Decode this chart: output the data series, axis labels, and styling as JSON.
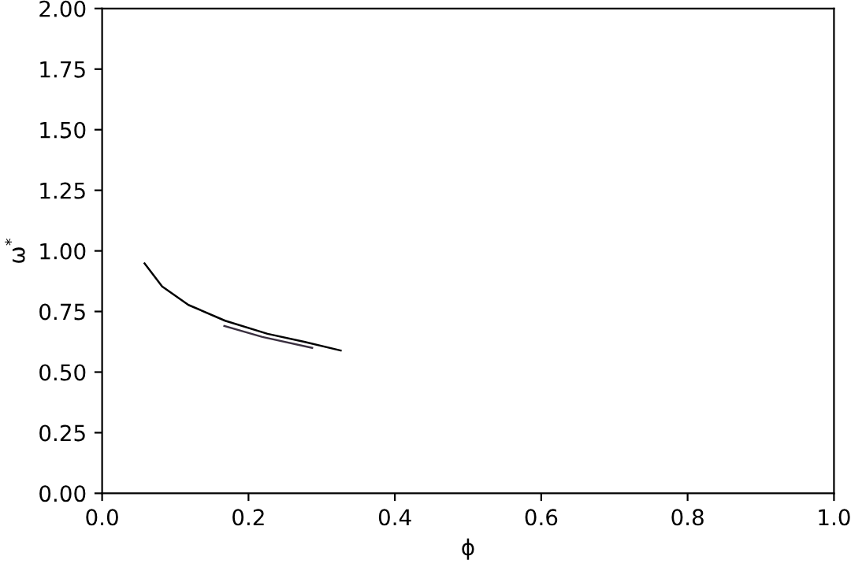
{
  "chart_data": {
    "type": "line",
    "xlabel": "ϕ",
    "ylabel": "ω$^{*}$",
    "xlim": [
      0,
      1
    ],
    "ylim": [
      0,
      2
    ],
    "xticks": [
      {
        "value": 0,
        "label": "0.0"
      },
      {
        "value": 0.2,
        "label": "0.2"
      },
      {
        "value": 0.4,
        "label": "0.4"
      },
      {
        "value": 0.6,
        "label": "0.6"
      },
      {
        "value": 0.8,
        "label": "0.8"
      },
      {
        "value": 1,
        "label": "1.0"
      }
    ],
    "yticks": [
      {
        "value": 0,
        "label": "0.00"
      },
      {
        "value": 0.25,
        "label": "0.25"
      },
      {
        "value": 0.5,
        "label": "0.50"
      },
      {
        "value": 0.75,
        "label": "0.75"
      },
      {
        "value": 1,
        "label": "1.00"
      },
      {
        "value": 1.25,
        "label": "1.25"
      },
      {
        "value": 1.5,
        "label": "1.50"
      },
      {
        "value": 1.75,
        "label": "1.75"
      },
      {
        "value": 2,
        "label": "2.00"
      }
    ],
    "grid": false,
    "legend": false,
    "line_style": "solid",
    "marker": "none",
    "series": [
      {
        "color": "#000000",
        "x": [
          0.058,
          0.082,
          0.118,
          0.168,
          0.226,
          0.276,
          0.326
        ],
        "values": [
          0.948,
          0.853,
          0.777,
          0.712,
          0.658,
          0.625,
          0.589
        ]
      },
      {
        "color": "#3a3040",
        "x": [
          0.167,
          0.219,
          0.287
        ],
        "values": [
          0.69,
          0.645,
          0.6
        ]
      }
    ]
  }
}
